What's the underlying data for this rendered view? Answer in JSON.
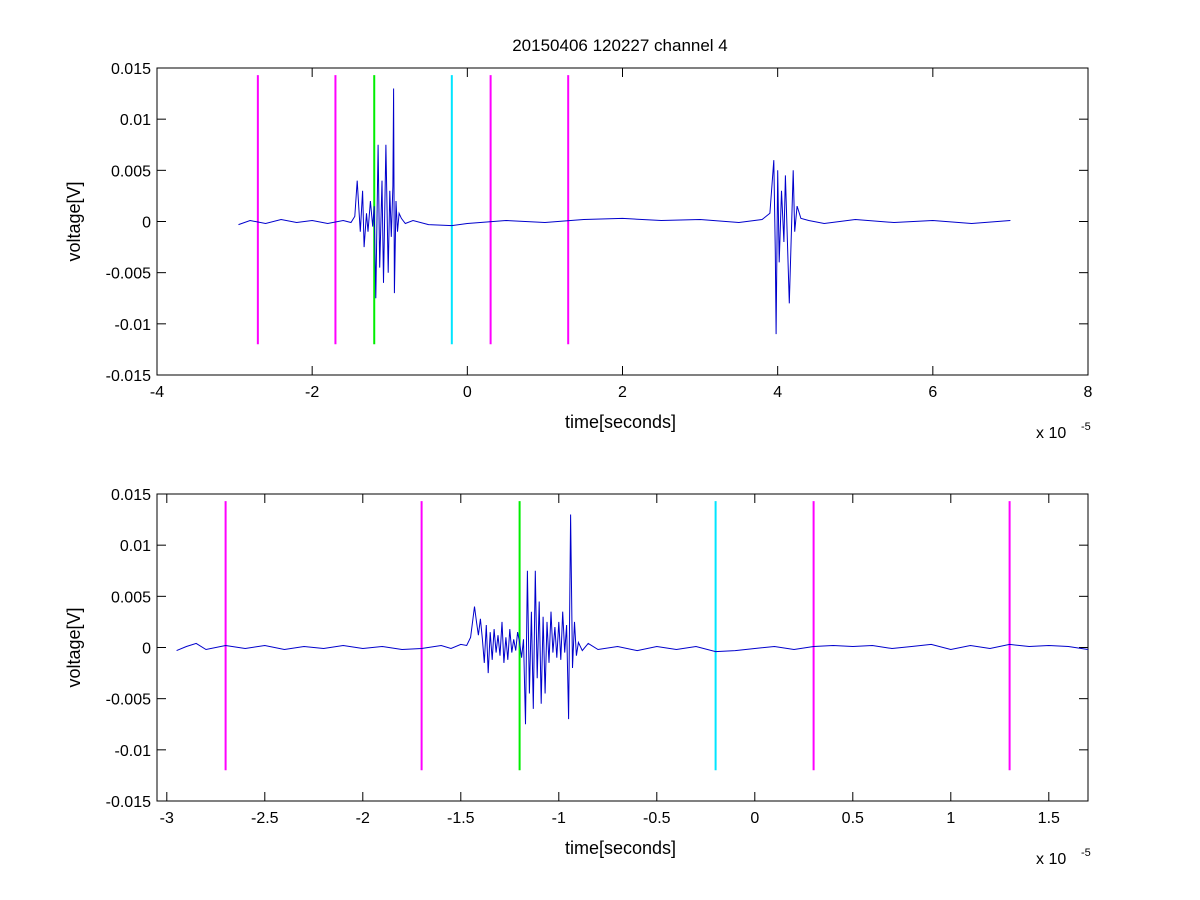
{
  "figure_title": "20150406 120227 channel 4",
  "colors": {
    "signal": "#0000cc",
    "magenta_marker": "#ff00ff",
    "green_marker": "#00ee00",
    "cyan_marker": "#00e5ff"
  },
  "chart_data": [
    {
      "type": "line",
      "title": "20150406 120227 channel 4",
      "xlabel": "time[seconds]",
      "ylabel": "voltage[V]",
      "x_multiplier": "x 10",
      "x_exponent": "-5",
      "xlim": [
        -4,
        8
      ],
      "ylim": [
        -0.015,
        0.015
      ],
      "xticks": [
        -4,
        -2,
        0,
        2,
        4,
        6,
        8
      ],
      "xtick_labels": [
        "-4",
        "-2",
        "0",
        "2",
        "4",
        "6",
        "8"
      ],
      "yticks": [
        0.015,
        0.01,
        0.005,
        0,
        -0.005,
        -0.01,
        -0.015
      ],
      "ytick_labels": [
        "0.015",
        "0.01",
        "0.005",
        "0",
        "-0.005",
        "-0.01",
        "-0.015"
      ],
      "grid": false,
      "series": [
        {
          "color": "#0000cc",
          "x": [
            -2.95,
            -2.8,
            -2.6,
            -2.4,
            -2.2,
            -2.0,
            -1.8,
            -1.6,
            -1.5,
            -1.45,
            -1.42,
            -1.4,
            -1.38,
            -1.35,
            -1.33,
            -1.3,
            -1.28,
            -1.25,
            -1.22,
            -1.2,
            -1.18,
            -1.15,
            -1.13,
            -1.1,
            -1.08,
            -1.05,
            -1.02,
            -1.0,
            -0.98,
            -0.96,
            -0.95,
            -0.94,
            -0.92,
            -0.9,
            -0.88,
            -0.85,
            -0.8,
            -0.7,
            -0.5,
            -0.2,
            0.0,
            0.5,
            1.0,
            1.5,
            2.0,
            2.5,
            3.0,
            3.5,
            3.8,
            3.9,
            3.95,
            3.97,
            3.98,
            4.0,
            4.02,
            4.05,
            4.08,
            4.1,
            4.15,
            4.2,
            4.22,
            4.25,
            4.3,
            4.4,
            4.6,
            5.0,
            5.5,
            6.0,
            6.5,
            7.0
          ],
          "y": [
            -0.0003,
            0.0001,
            -0.0002,
            0.0002,
            -0.0001,
            0.0001,
            -0.0002,
            0.0001,
            -0.0001,
            0.0005,
            0.004,
            0.0015,
            -0.001,
            0.003,
            -0.0025,
            0.0008,
            -0.001,
            0.002,
            -0.0005,
            0.0015,
            -0.0075,
            0.0075,
            -0.0045,
            0.004,
            -0.006,
            0.0075,
            -0.005,
            0.003,
            -0.0015,
            0.0035,
            0.013,
            -0.007,
            0.002,
            -0.001,
            0.0008,
            0.0003,
            -0.0002,
            0.0001,
            -0.0003,
            -0.0004,
            -0.0002,
            0.0001,
            -0.0001,
            0.0002,
            0.0003,
            0.0001,
            0.0002,
            -0.0001,
            0.0002,
            0.0008,
            0.006,
            -0.003,
            -0.011,
            0.005,
            -0.004,
            0.003,
            -0.002,
            0.0045,
            -0.008,
            0.005,
            -0.001,
            0.0015,
            0.0003,
            0.0001,
            -0.0002,
            0.0002,
            -0.0001,
            0.0001,
            -0.0002,
            0.0001
          ]
        }
      ],
      "vlines": [
        {
          "x": -2.7,
          "color": "#ff00ff",
          "ymin": -0.012,
          "ymax": 0.0143
        },
        {
          "x": -1.7,
          "color": "#ff00ff",
          "ymin": -0.012,
          "ymax": 0.0143
        },
        {
          "x": -1.2,
          "color": "#00ee00",
          "ymin": -0.012,
          "ymax": 0.0143
        },
        {
          "x": -0.2,
          "color": "#00e5ff",
          "ymin": -0.012,
          "ymax": 0.0143
        },
        {
          "x": 0.3,
          "color": "#ff00ff",
          "ymin": -0.012,
          "ymax": 0.0143
        },
        {
          "x": 1.3,
          "color": "#ff00ff",
          "ymin": -0.012,
          "ymax": 0.0143
        }
      ]
    },
    {
      "type": "line",
      "title": "",
      "xlabel": "time[seconds]",
      "ylabel": "voltage[V]",
      "x_multiplier": "x 10",
      "x_exponent": "-5",
      "xlim": [
        -3.05,
        1.7
      ],
      "ylim": [
        -0.015,
        0.015
      ],
      "xticks": [
        -3,
        -2.5,
        -2,
        -1.5,
        -1,
        -0.5,
        0,
        0.5,
        1,
        1.5
      ],
      "xtick_labels": [
        "-3",
        "-2.5",
        "-2",
        "-1.5",
        "-1",
        "-0.5",
        "0",
        "0.5",
        "1",
        "1.5"
      ],
      "yticks": [
        0.015,
        0.01,
        0.005,
        0,
        -0.005,
        -0.01,
        -0.015
      ],
      "ytick_labels": [
        "0.015",
        "0.01",
        "0.005",
        "0",
        "-0.005",
        "-0.01",
        "-0.015"
      ],
      "grid": false,
      "series": [
        {
          "color": "#0000cc",
          "x": [
            -2.95,
            -2.9,
            -2.85,
            -2.8,
            -2.7,
            -2.6,
            -2.5,
            -2.4,
            -2.3,
            -2.2,
            -2.1,
            -2.0,
            -1.9,
            -1.8,
            -1.7,
            -1.6,
            -1.55,
            -1.5,
            -1.47,
            -1.45,
            -1.43,
            -1.42,
            -1.41,
            -1.4,
            -1.39,
            -1.38,
            -1.37,
            -1.36,
            -1.35,
            -1.34,
            -1.33,
            -1.32,
            -1.31,
            -1.3,
            -1.29,
            -1.28,
            -1.27,
            -1.26,
            -1.25,
            -1.24,
            -1.23,
            -1.22,
            -1.21,
            -1.2,
            -1.19,
            -1.18,
            -1.17,
            -1.16,
            -1.15,
            -1.14,
            -1.13,
            -1.12,
            -1.11,
            -1.1,
            -1.09,
            -1.08,
            -1.07,
            -1.06,
            -1.05,
            -1.04,
            -1.03,
            -1.02,
            -1.01,
            -1.0,
            -0.99,
            -0.98,
            -0.97,
            -0.96,
            -0.95,
            -0.94,
            -0.93,
            -0.92,
            -0.91,
            -0.9,
            -0.88,
            -0.85,
            -0.8,
            -0.7,
            -0.6,
            -0.5,
            -0.4,
            -0.3,
            -0.2,
            -0.1,
            0.0,
            0.1,
            0.2,
            0.3,
            0.4,
            0.5,
            0.6,
            0.7,
            0.8,
            0.9,
            1.0,
            1.1,
            1.2,
            1.3,
            1.4,
            1.5,
            1.6,
            1.7
          ],
          "y": [
            -0.0003,
            0.0001,
            0.0004,
            -0.0002,
            0.0002,
            -0.0001,
            0.0002,
            -0.0002,
            0.0001,
            -0.0001,
            0.0002,
            -0.0001,
            0.0001,
            -0.0002,
            -0.0001,
            0.0002,
            -0.0001,
            0.0003,
            0.0002,
            0.001,
            0.004,
            0.0025,
            0.0012,
            0.0028,
            0.0008,
            -0.0015,
            0.0022,
            -0.0025,
            0.0015,
            -0.0012,
            0.0018,
            -0.0005,
            0.0012,
            -0.0008,
            0.0025,
            -0.0015,
            0.001,
            -0.0012,
            0.0018,
            -0.0005,
            0.0008,
            -0.0003,
            0.0015,
            0.0005,
            -0.001,
            0.0008,
            -0.0075,
            0.0075,
            -0.0045,
            0.0035,
            -0.006,
            0.0075,
            -0.003,
            0.0045,
            -0.0055,
            0.003,
            -0.0045,
            0.0025,
            -0.0015,
            0.0035,
            -0.0005,
            0.002,
            -0.001,
            0.0025,
            -0.0012,
            0.0035,
            -0.0005,
            0.0022,
            -0.007,
            0.013,
            -0.002,
            0.0025,
            -0.0008,
            0.0005,
            -0.0003,
            0.0004,
            -0.0002,
            0.0001,
            -0.0003,
            0.0001,
            -0.0002,
            0.0001,
            -0.0004,
            -0.0003,
            -0.0001,
            0.0001,
            -0.0002,
            0.0001,
            0.0002,
            0.0001,
            0.0002,
            -0.0001,
            0.0001,
            0.0003,
            -0.0002,
            0.0002,
            -0.0001,
            0.0003,
            0.0001,
            0.0002,
            0.0001,
            -0.0002
          ]
        }
      ],
      "vlines": [
        {
          "x": -2.7,
          "color": "#ff00ff",
          "ymin": -0.012,
          "ymax": 0.0143
        },
        {
          "x": -1.7,
          "color": "#ff00ff",
          "ymin": -0.012,
          "ymax": 0.0143
        },
        {
          "x": -1.2,
          "color": "#00ee00",
          "ymin": -0.012,
          "ymax": 0.0143
        },
        {
          "x": -0.2,
          "color": "#00e5ff",
          "ymin": -0.012,
          "ymax": 0.0143
        },
        {
          "x": 0.3,
          "color": "#ff00ff",
          "ymin": -0.012,
          "ymax": 0.0143
        },
        {
          "x": 1.3,
          "color": "#ff00ff",
          "ymin": -0.012,
          "ymax": 0.0143
        }
      ]
    }
  ]
}
